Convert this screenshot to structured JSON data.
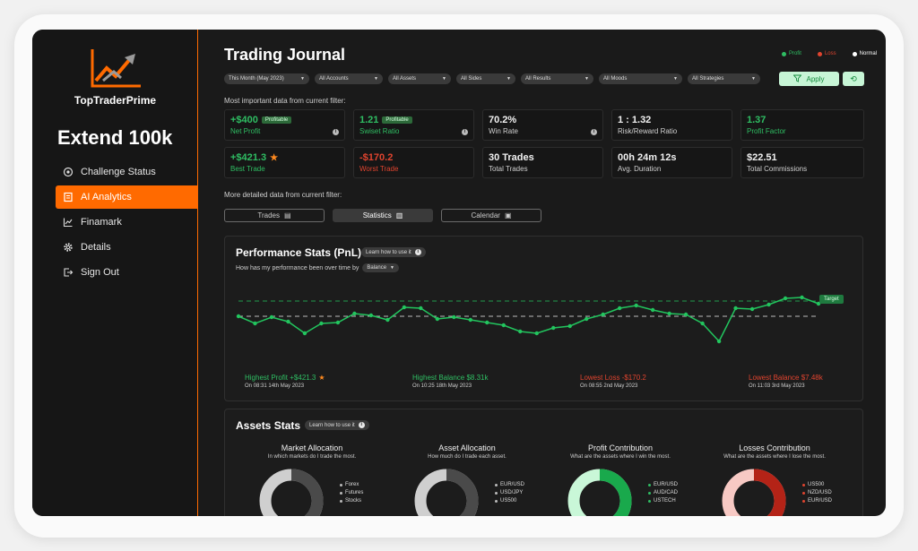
{
  "brand": {
    "name": "TopTraderPrime"
  },
  "account": {
    "title": "Extend 100k"
  },
  "nav": [
    {
      "label": "Challenge Status",
      "icon": "target-icon",
      "active": false
    },
    {
      "label": "AI Analytics",
      "icon": "notebook-icon",
      "active": true
    },
    {
      "label": "Finamark",
      "icon": "chart-line-icon",
      "active": false
    },
    {
      "label": "Details",
      "icon": "gear-icon",
      "active": false
    },
    {
      "label": "Sign Out",
      "icon": "sign-out-icon",
      "active": false
    }
  ],
  "header": {
    "title": "Trading Journal"
  },
  "legend": [
    {
      "label": "Profit",
      "color": "#2fbe63"
    },
    {
      "label": "Loss",
      "color": "#e0442f"
    },
    {
      "label": "Normal",
      "color": "#ffffff"
    }
  ],
  "filters": [
    "This Month (May 2023)",
    "All Accounts",
    "All Assets",
    "All Sides",
    "All Results",
    "All Moods",
    "All Strategies"
  ],
  "actions": {
    "apply": "Apply"
  },
  "summary": {
    "hint": "Most important data from current filter:"
  },
  "stats_row1": [
    {
      "value": "+$400",
      "label": "Net Profit",
      "badge": "Profitable",
      "color": "green",
      "info": true
    },
    {
      "value": "1.21",
      "label": "Swiset Ratio",
      "badge": "Profitable",
      "color": "green",
      "info": true
    },
    {
      "value": "70.2%",
      "label": "Win Rate",
      "badge": "",
      "color": "white",
      "info": true
    },
    {
      "value": "1 : 1.32",
      "label": "Risk/Reward Ratio",
      "badge": "",
      "color": "white",
      "info": false
    },
    {
      "value": "1.37",
      "label": "Profit Factor",
      "badge": "",
      "color": "green",
      "info": false
    }
  ],
  "stats_row2": [
    {
      "value": "+$421.3",
      "label": "Best Trade",
      "star": true,
      "color": "green"
    },
    {
      "value": "-$170.2",
      "label": "Worst Trade",
      "star": false,
      "color": "red"
    },
    {
      "value": "30 Trades",
      "label": "Total Trades",
      "star": false,
      "color": "white"
    },
    {
      "value": "00h 24m 12s",
      "label": "Avg. Duration",
      "star": false,
      "color": "white"
    },
    {
      "value": "$22.51",
      "label": "Total Commissions",
      "star": false,
      "color": "white"
    }
  ],
  "detail": {
    "hint": "More detailed data from current filter:"
  },
  "tabs": [
    {
      "label": "Trades",
      "icon": "document-icon",
      "active": false
    },
    {
      "label": "Statistics",
      "icon": "bar-chart-icon",
      "active": true
    },
    {
      "label": "Calendar",
      "icon": "calendar-icon",
      "active": false
    }
  ],
  "performance": {
    "title": "Performance Stats (PnL)",
    "learn": "Learn how to use it",
    "subtitle": "How has my performance been over time by",
    "metric": "Balance",
    "target_label": "Target",
    "highlights": [
      {
        "label": "Highest Profit +$421.3",
        "sub": "On 08:31 14th May 2023",
        "color": "green",
        "star": true
      },
      {
        "label": "Highest Balance $8.31k",
        "sub": "On 10:25 18th May 2023",
        "color": "green",
        "star": false
      },
      {
        "label": "Lowest Loss -$170.2",
        "sub": "On 08:55 2nd May 2023",
        "color": "red",
        "star": false
      },
      {
        "label": "Lowest Balance $7.48k",
        "sub": "On 11:03 3rd May 2023",
        "color": "red",
        "star": false
      }
    ]
  },
  "chart_data": {
    "type": "line",
    "ylim": [
      0,
      100
    ],
    "target": 75,
    "baseline": 58,
    "series": [
      {
        "values": [
          58,
          50,
          57,
          52,
          39,
          50,
          51,
          61,
          59,
          54,
          68,
          67,
          55,
          57,
          54,
          51,
          48,
          41,
          39,
          45,
          47,
          55,
          60,
          67,
          70,
          65,
          61,
          60,
          50,
          30,
          67,
          66,
          71,
          78,
          79,
          72
        ]
      }
    ]
  },
  "assets": {
    "title": "Assets Stats",
    "learn": "Learn how to use it",
    "donuts": [
      {
        "title": "Market Allocation",
        "desc": "In which markets do I trade the most.",
        "items": [
          "Forex",
          "Futures",
          "Stocks"
        ],
        "fill": 0.42,
        "main_color": "#4a4a4a",
        "accent": "#cfcfcf"
      },
      {
        "title": "Asset Allocation",
        "desc": "How much do I trade each asset.",
        "items": [
          "EUR/USD",
          "USD/JPY",
          "US500"
        ],
        "fill": 0.4,
        "main_color": "#4a4a4a",
        "accent": "#cfcfcf"
      },
      {
        "title": "Profit Contribution",
        "desc": "What are the assets where I win the most.",
        "items": [
          "EUR/USD",
          "AUD/CAD",
          "USTECH"
        ],
        "fill": 0.52,
        "main_color": "#19a94c",
        "accent": "#c9f7d8"
      },
      {
        "title": "Losses Contribution",
        "desc": "What are the assets where I lose the most.",
        "items": [
          "US500",
          "NZD/USD",
          "EUR/USD"
        ],
        "fill": 0.55,
        "main_color": "#b42317",
        "accent": "#f7c9c4"
      }
    ]
  }
}
